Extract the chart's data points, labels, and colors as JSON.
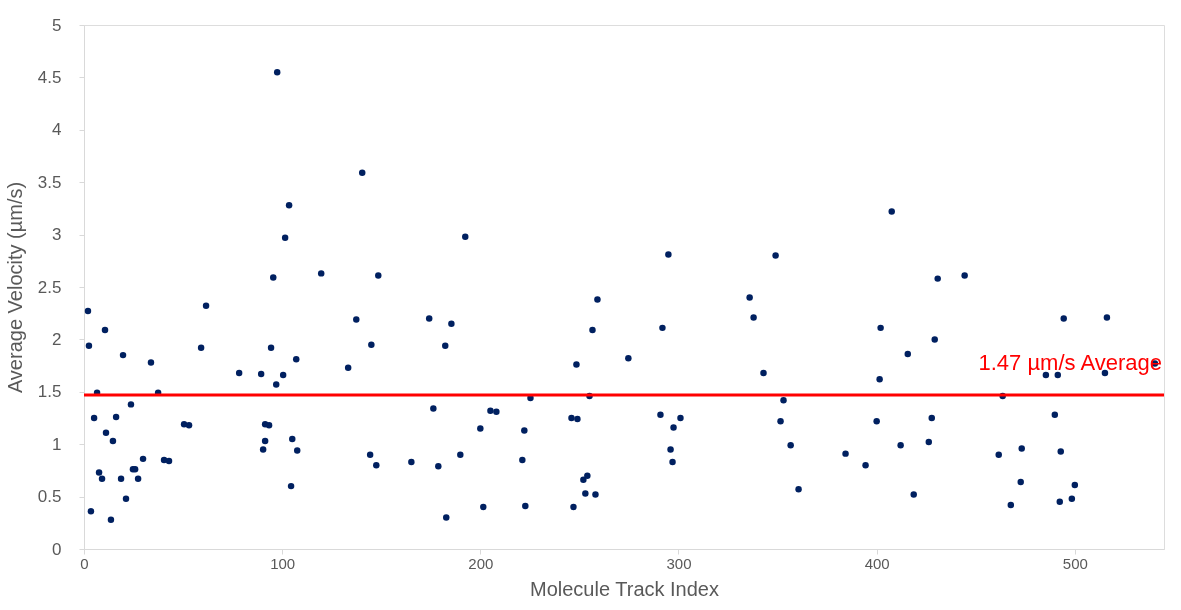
{
  "chart_data": {
    "type": "scatter",
    "xlabel": "Molecule Track Index",
    "ylabel": "Average Velocity (µm/s)",
    "x": [
      2.0,
      2.5,
      3.5,
      5.1,
      6.6,
      7.6,
      9.1,
      10.6,
      11.1,
      13.6,
      14.6,
      16.2,
      18.7,
      19.7,
      21.2,
      23.7,
      24.7,
      25.8,
      27.3,
      29.8,
      33.8,
      37.4,
      40.4,
      42.9,
      50.5,
      53.0,
      59.1,
      61.6,
      78.3,
      89.4,
      90.4,
      91.4,
      91.4,
      93.4,
      94.4,
      95.5,
      97.5,
      97.0,
      100.5,
      101.5,
      103.5,
      104.5,
      105.1,
      107.1,
      107.6,
      119.7,
      133.3,
      137.4,
      140.4,
      144.4,
      145.0,
      147.5,
      148.5,
      165.2,
      174.2,
      176.3,
      178.8,
      182.3,
      182.8,
      185.4,
      189.9,
      192.4,
      200.0,
      201.5,
      205.1,
      208.1,
      221.2,
      222.2,
      222.7,
      225.3,
      247.0,
      246.0,
      248.5,
      249.0,
      252.0,
      254.0,
      253.0,
      255.1,
      256.6,
      258.1,
      259.1,
      274.7,
      290.9,
      291.9,
      294.9,
      296.0,
      297.0,
      297.5,
      301.0,
      335.9,
      337.9,
      342.9,
      349.0,
      351.5,
      353.0,
      356.6,
      360.6,
      384.3,
      394.4,
      400.0,
      401.5,
      402.0,
      407.6,
      412.1,
      415.7,
      418.7,
      426.3,
      427.8,
      429.3,
      430.8,
      444.4,
      461.6,
      463.6,
      467.7,
      472.7,
      473.2,
      485.4,
      489.9,
      491.4,
      492.9,
      492.4,
      494.4,
      498.5,
      500.0,
      515.2,
      516.2,
      540.4
    ],
    "series": [
      {
        "color": "#002060",
        "values": [
          2.27,
          1.94,
          0.36,
          1.25,
          1.49,
          0.73,
          0.67,
          2.09,
          1.11,
          0.28,
          1.03,
          1.26,
          0.67,
          1.85,
          0.48,
          1.38,
          0.76,
          0.76,
          0.67,
          0.86,
          1.78,
          1.49,
          0.85,
          0.84,
          1.19,
          1.18,
          1.92,
          2.32,
          1.68,
          1.67,
          0.95,
          1.03,
          1.19,
          1.18,
          1.92,
          2.59,
          4.55,
          1.57,
          1.66,
          2.97,
          3.28,
          0.6,
          1.05,
          1.81,
          0.94,
          2.63,
          1.73,
          2.19,
          3.59,
          0.9,
          1.95,
          0.8,
          2.61,
          0.83,
          2.2,
          1.34,
          0.79,
          1.94,
          0.3,
          2.15,
          0.9,
          2.98,
          1.15,
          0.4,
          1.32,
          1.31,
          0.85,
          1.13,
          0.41,
          1.44,
          0.4,
          1.25,
          1.76,
          1.24,
          0.66,
          0.7,
          0.53,
          1.46,
          2.09,
          0.52,
          2.38,
          1.82,
          1.28,
          2.11,
          2.81,
          0.95,
          0.83,
          1.16,
          1.25,
          2.4,
          2.21,
          1.68,
          2.8,
          1.22,
          1.42,
          0.99,
          0.57,
          0.91,
          0.8,
          1.22,
          1.62,
          2.11,
          3.22,
          0.99,
          1.86,
          0.52,
          1.02,
          1.25,
          2.0,
          2.58,
          2.61,
          0.9,
          1.46,
          0.42,
          0.64,
          0.96,
          1.66,
          1.28,
          1.66,
          0.93,
          0.45,
          2.2,
          0.48,
          0.61,
          1.68,
          2.21,
          1.77
        ]
      }
    ],
    "xlim": [
      0,
      545
    ],
    "xticks": [
      0,
      100,
      200,
      300,
      400,
      500
    ],
    "ylim": [
      0,
      5
    ],
    "yticks": [
      0,
      0.5,
      1,
      1.5,
      2,
      2.5,
      3,
      3.5,
      4,
      4.5,
      5
    ],
    "ref_lines": [
      {
        "axis": "y",
        "value": 1.47,
        "label": "1.47 µm/s Average",
        "color": "#ff0000",
        "line_style": "solid"
      }
    ],
    "marker": "circle",
    "grid": false
  }
}
